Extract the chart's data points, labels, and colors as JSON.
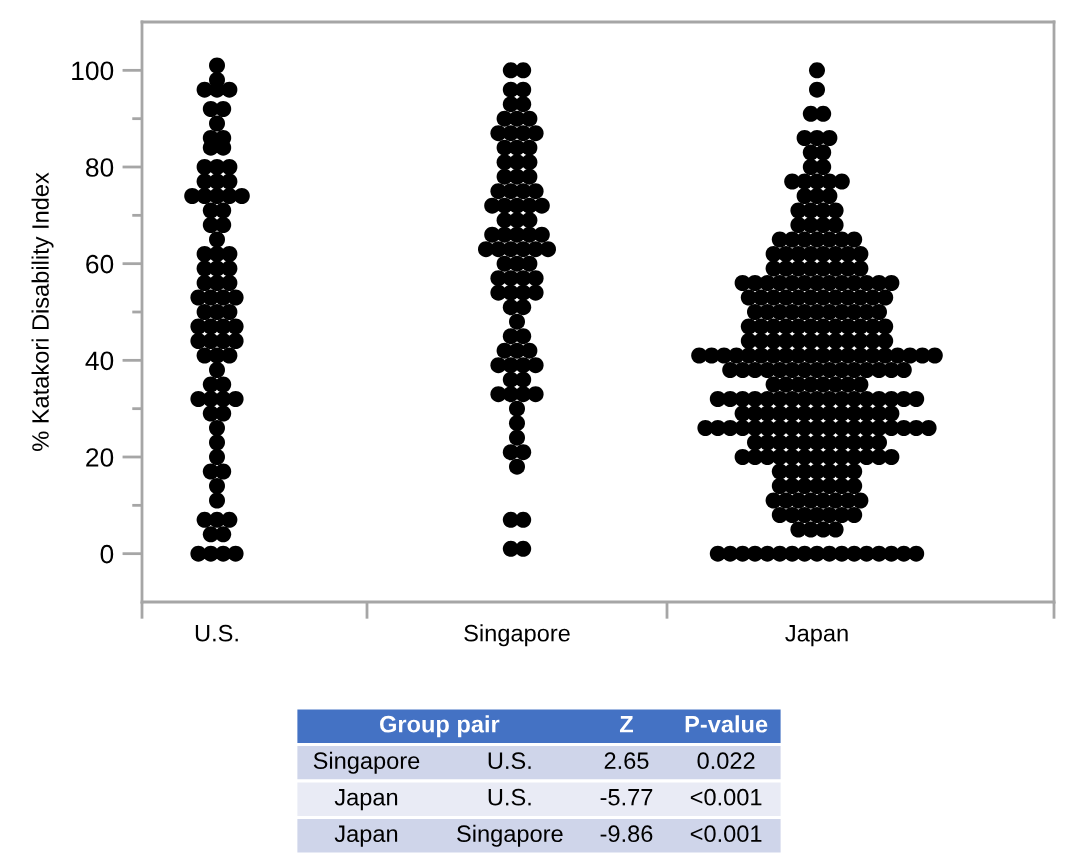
{
  "chart_data": [
    {
      "type": "scatter",
      "ylabel": "% Katakori Disability Index",
      "categories": [
        "U.S.",
        "Singapore",
        "Japan"
      ],
      "marker": "circle",
      "ylim": [
        -10,
        110
      ],
      "yticks": [
        0,
        20,
        40,
        60,
        80,
        100,
        {
          "value": 10,
          "label": null
        },
        {
          "value": 30,
          "label": null
        },
        {
          "value": 50,
          "label": null
        },
        {
          "value": 70,
          "label": null
        },
        {
          "value": 90,
          "label": null
        }
      ],
      "series": [
        {
          "type": "scatter",
          "color": "#000000",
          "x": [
            "U.S.",
            "U.S.",
            "U.S.",
            "U.S.",
            "U.S.",
            "U.S.",
            "U.S.",
            "U.S.",
            "U.S.",
            "U.S.",
            "U.S.",
            "U.S.",
            "U.S.",
            "U.S.",
            "U.S.",
            "U.S.",
            "U.S.",
            "U.S.",
            "U.S.",
            "U.S.",
            "U.S.",
            "U.S.",
            "U.S.",
            "U.S.",
            "U.S.",
            "U.S.",
            "U.S.",
            "U.S.",
            "U.S.",
            "U.S.",
            "U.S.",
            "U.S.",
            "U.S.",
            "U.S.",
            "U.S.",
            "U.S.",
            "U.S.",
            "U.S.",
            "U.S.",
            "U.S.",
            "U.S.",
            "U.S.",
            "U.S.",
            "U.S.",
            "U.S.",
            "U.S.",
            "U.S.",
            "U.S.",
            "U.S.",
            "U.S.",
            "U.S.",
            "U.S.",
            "U.S.",
            "U.S.",
            "U.S.",
            "U.S.",
            "U.S.",
            "U.S.",
            "U.S.",
            "U.S.",
            "U.S.",
            "U.S.",
            "U.S.",
            "U.S.",
            "U.S.",
            "U.S.",
            "U.S.",
            "U.S.",
            "U.S.",
            "U.S.",
            "U.S.",
            "U.S.",
            "U.S.",
            "U.S.",
            "U.S.",
            "U.S.",
            "U.S.",
            "U.S.",
            "U.S.",
            "U.S."
          ],
          "values": [
            101,
            98,
            96,
            96,
            96,
            92,
            92,
            89,
            86,
            86,
            84,
            84,
            80,
            80,
            80,
            77,
            77,
            77,
            74,
            74,
            74,
            74,
            74,
            71,
            71,
            68,
            68,
            65,
            62,
            62,
            62,
            59,
            59,
            59,
            56,
            56,
            56,
            53,
            53,
            53,
            53,
            50,
            50,
            50,
            47,
            47,
            47,
            47,
            44,
            44,
            44,
            44,
            41,
            41,
            41,
            38,
            35,
            35,
            32,
            32,
            32,
            32,
            29,
            29,
            26,
            23,
            20,
            17,
            17,
            14,
            11,
            7,
            7,
            7,
            4,
            4,
            0,
            0,
            0,
            0
          ]
        },
        {
          "type": "scatter",
          "color": "#000000",
          "x": [
            "Singapore",
            "Singapore",
            "Singapore",
            "Singapore",
            "Singapore",
            "Singapore",
            "Singapore",
            "Singapore",
            "Singapore",
            "Singapore",
            "Singapore",
            "Singapore",
            "Singapore",
            "Singapore",
            "Singapore",
            "Singapore",
            "Singapore",
            "Singapore",
            "Singapore",
            "Singapore",
            "Singapore",
            "Singapore",
            "Singapore",
            "Singapore",
            "Singapore",
            "Singapore",
            "Singapore",
            "Singapore",
            "Singapore",
            "Singapore",
            "Singapore",
            "Singapore",
            "Singapore",
            "Singapore",
            "Singapore",
            "Singapore",
            "Singapore",
            "Singapore",
            "Singapore",
            "Singapore",
            "Singapore",
            "Singapore",
            "Singapore",
            "Singapore",
            "Singapore",
            "Singapore",
            "Singapore",
            "Singapore",
            "Singapore",
            "Singapore",
            "Singapore",
            "Singapore",
            "Singapore",
            "Singapore",
            "Singapore",
            "Singapore",
            "Singapore",
            "Singapore",
            "Singapore",
            "Singapore",
            "Singapore",
            "Singapore",
            "Singapore",
            "Singapore",
            "Singapore",
            "Singapore",
            "Singapore",
            "Singapore",
            "Singapore",
            "Singapore",
            "Singapore",
            "Singapore",
            "Singapore",
            "Singapore",
            "Singapore",
            "Singapore",
            "Singapore",
            "Singapore",
            "Singapore",
            "Singapore",
            "Singapore",
            "Singapore",
            "Singapore",
            "Singapore"
          ],
          "values": [
            100,
            100,
            96,
            96,
            93,
            93,
            90,
            90,
            90,
            87,
            87,
            87,
            87,
            84,
            84,
            84,
            81,
            81,
            81,
            78,
            78,
            78,
            75,
            75,
            75,
            75,
            72,
            72,
            72,
            72,
            72,
            69,
            69,
            69,
            66,
            66,
            66,
            66,
            66,
            63,
            63,
            63,
            63,
            63,
            63,
            60,
            60,
            60,
            57,
            57,
            57,
            57,
            54,
            54,
            54,
            54,
            51,
            51,
            48,
            45,
            45,
            42,
            42,
            42,
            39,
            39,
            39,
            39,
            36,
            36,
            33,
            33,
            33,
            33,
            30,
            27,
            24,
            21,
            21,
            18,
            7,
            7,
            1,
            1
          ]
        },
        {
          "type": "scatter",
          "color": "#000000",
          "x": [
            "Japan",
            "Japan",
            "Japan",
            "Japan",
            "Japan",
            "Japan",
            "Japan",
            "Japan",
            "Japan",
            "Japan",
            "Japan",
            "Japan",
            "Japan",
            "Japan",
            "Japan",
            "Japan",
            "Japan",
            "Japan",
            "Japan",
            "Japan",
            "Japan",
            "Japan",
            "Japan",
            "Japan",
            "Japan",
            "Japan",
            "Japan",
            "Japan",
            "Japan",
            "Japan",
            "Japan",
            "Japan",
            "Japan",
            "Japan",
            "Japan",
            "Japan",
            "Japan",
            "Japan",
            "Japan",
            "Japan",
            "Japan",
            "Japan",
            "Japan",
            "Japan",
            "Japan",
            "Japan",
            "Japan",
            "Japan",
            "Japan",
            "Japan",
            "Japan",
            "Japan",
            "Japan",
            "Japan",
            "Japan",
            "Japan",
            "Japan",
            "Japan",
            "Japan",
            "Japan",
            "Japan",
            "Japan",
            "Japan",
            "Japan",
            "Japan",
            "Japan",
            "Japan",
            "Japan",
            "Japan",
            "Japan",
            "Japan",
            "Japan",
            "Japan",
            "Japan",
            "Japan",
            "Japan",
            "Japan",
            "Japan",
            "Japan",
            "Japan",
            "Japan",
            "Japan",
            "Japan",
            "Japan",
            "Japan",
            "Japan",
            "Japan",
            "Japan",
            "Japan",
            "Japan",
            "Japan",
            "Japan",
            "Japan",
            "Japan",
            "Japan",
            "Japan",
            "Japan",
            "Japan",
            "Japan",
            "Japan",
            "Japan",
            "Japan",
            "Japan",
            "Japan",
            "Japan",
            "Japan",
            "Japan",
            "Japan",
            "Japan",
            "Japan",
            "Japan",
            "Japan",
            "Japan",
            "Japan",
            "Japan",
            "Japan",
            "Japan",
            "Japan",
            "Japan",
            "Japan",
            "Japan",
            "Japan",
            "Japan",
            "Japan",
            "Japan",
            "Japan",
            "Japan",
            "Japan",
            "Japan",
            "Japan",
            "Japan",
            "Japan",
            "Japan",
            "Japan",
            "Japan",
            "Japan",
            "Japan",
            "Japan",
            "Japan",
            "Japan",
            "Japan",
            "Japan",
            "Japan",
            "Japan",
            "Japan",
            "Japan",
            "Japan",
            "Japan",
            "Japan",
            "Japan",
            "Japan",
            "Japan",
            "Japan",
            "Japan",
            "Japan",
            "Japan",
            "Japan",
            "Japan",
            "Japan",
            "Japan",
            "Japan",
            "Japan",
            "Japan",
            "Japan",
            "Japan",
            "Japan",
            "Japan",
            "Japan",
            "Japan",
            "Japan",
            "Japan",
            "Japan",
            "Japan",
            "Japan",
            "Japan",
            "Japan",
            "Japan",
            "Japan",
            "Japan",
            "Japan",
            "Japan",
            "Japan",
            "Japan",
            "Japan",
            "Japan",
            "Japan",
            "Japan",
            "Japan",
            "Japan",
            "Japan",
            "Japan",
            "Japan",
            "Japan",
            "Japan",
            "Japan",
            "Japan",
            "Japan",
            "Japan",
            "Japan",
            "Japan",
            "Japan",
            "Japan",
            "Japan",
            "Japan",
            "Japan",
            "Japan",
            "Japan",
            "Japan",
            "Japan",
            "Japan",
            "Japan",
            "Japan",
            "Japan",
            "Japan",
            "Japan",
            "Japan",
            "Japan",
            "Japan",
            "Japan",
            "Japan",
            "Japan",
            "Japan",
            "Japan",
            "Japan",
            "Japan",
            "Japan",
            "Japan",
            "Japan",
            "Japan",
            "Japan",
            "Japan",
            "Japan",
            "Japan",
            "Japan",
            "Japan",
            "Japan",
            "Japan",
            "Japan",
            "Japan",
            "Japan",
            "Japan",
            "Japan",
            "Japan",
            "Japan",
            "Japan",
            "Japan",
            "Japan",
            "Japan",
            "Japan",
            "Japan",
            "Japan",
            "Japan",
            "Japan",
            "Japan",
            "Japan",
            "Japan",
            "Japan",
            "Japan",
            "Japan",
            "Japan",
            "Japan",
            "Japan",
            "Japan",
            "Japan",
            "Japan",
            "Japan",
            "Japan",
            "Japan",
            "Japan",
            "Japan",
            "Japan",
            "Japan",
            "Japan",
            "Japan",
            "Japan",
            "Japan"
          ],
          "values": [
            100,
            96,
            91,
            91,
            86,
            86,
            86,
            83,
            83,
            80,
            80,
            77,
            77,
            77,
            77,
            77,
            74,
            74,
            74,
            71,
            71,
            71,
            71,
            68,
            68,
            68,
            68,
            65,
            65,
            65,
            65,
            65,
            65,
            65,
            62,
            62,
            62,
            62,
            62,
            62,
            62,
            62,
            59,
            59,
            59,
            59,
            59,
            59,
            59,
            59,
            56,
            56,
            56,
            56,
            56,
            56,
            56,
            56,
            56,
            56,
            56,
            56,
            56,
            53,
            53,
            53,
            53,
            53,
            53,
            53,
            53,
            53,
            53,
            53,
            53,
            50,
            50,
            50,
            50,
            50,
            50,
            50,
            50,
            50,
            50,
            50,
            47,
            47,
            47,
            47,
            47,
            47,
            47,
            47,
            47,
            47,
            47,
            47,
            44,
            44,
            44,
            44,
            44,
            44,
            44,
            44,
            44,
            44,
            44,
            44,
            41,
            41,
            41,
            41,
            41,
            41,
            41,
            41,
            41,
            41,
            41,
            41,
            41,
            41,
            41,
            41,
            41,
            41,
            41,
            41,
            38,
            38,
            38,
            38,
            38,
            38,
            38,
            38,
            38,
            38,
            38,
            38,
            38,
            38,
            38,
            35,
            35,
            35,
            35,
            35,
            35,
            35,
            35,
            32,
            32,
            32,
            32,
            32,
            32,
            32,
            32,
            32,
            32,
            32,
            32,
            32,
            32,
            32,
            32,
            32,
            29,
            29,
            29,
            29,
            29,
            29,
            29,
            29,
            29,
            29,
            29,
            29,
            29,
            26,
            26,
            26,
            26,
            26,
            26,
            26,
            26,
            26,
            26,
            26,
            26,
            26,
            26,
            26,
            26,
            26,
            26,
            26,
            23,
            23,
            23,
            23,
            23,
            23,
            23,
            23,
            23,
            23,
            23,
            20,
            20,
            20,
            20,
            20,
            20,
            20,
            20,
            20,
            20,
            20,
            20,
            20,
            17,
            17,
            17,
            17,
            17,
            17,
            17,
            14,
            14,
            14,
            14,
            14,
            14,
            14,
            11,
            11,
            11,
            11,
            11,
            11,
            11,
            11,
            8,
            8,
            8,
            8,
            8,
            8,
            8,
            5,
            5,
            5,
            5,
            0,
            0,
            0,
            0,
            0,
            0,
            0,
            0,
            0,
            0,
            0,
            0,
            0,
            0,
            0,
            0,
            0
          ]
        }
      ]
    },
    {
      "type": "other",
      "categories": [
        "Group pair",
        "Z",
        "P-value"
      ],
      "cell_labels": [
        [
          "Singapore",
          "U.S.",
          "2.65",
          "0.022"
        ],
        [
          "Japan",
          "U.S.",
          "-5.77",
          "<0.001"
        ],
        [
          "Japan",
          "Singapore",
          "-9.86",
          "<0.001"
        ]
      ]
    }
  ]
}
